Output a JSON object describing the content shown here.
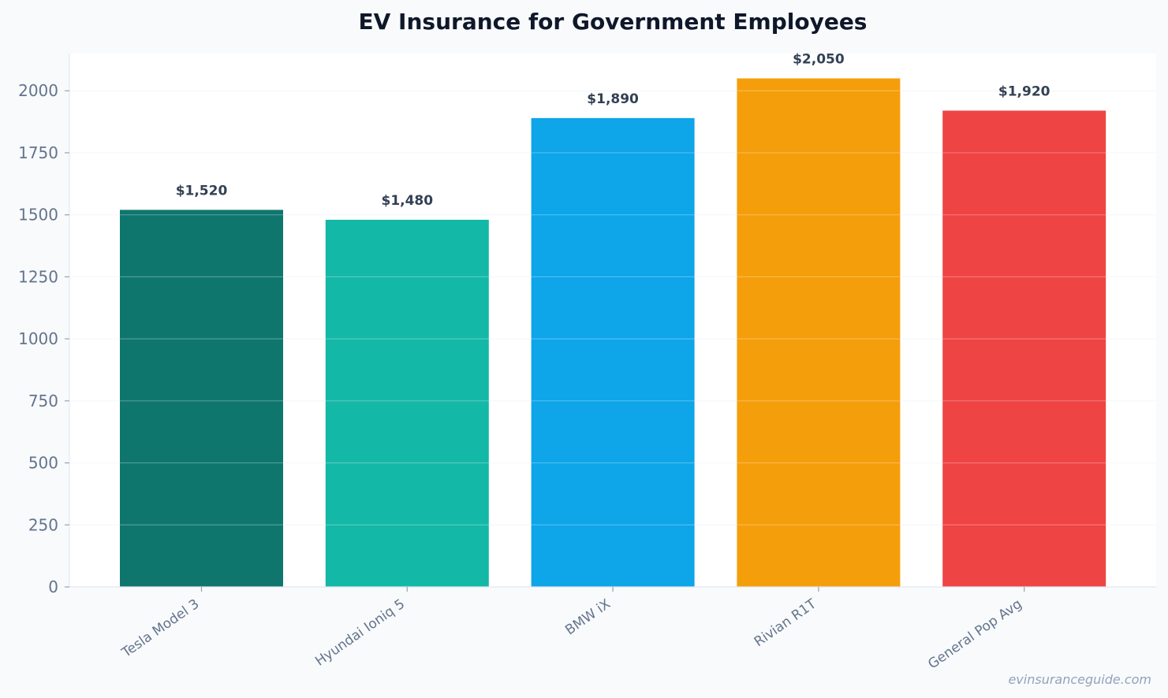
{
  "chart_data": {
    "type": "bar",
    "title": "EV Insurance for Government Employees",
    "categories": [
      "Tesla Model 3",
      "Hyundai Ioniq 5",
      "BMW iX",
      "Rivian R1T",
      "General Pop Avg"
    ],
    "values": [
      1520,
      1480,
      1890,
      2050,
      1920
    ],
    "value_labels": [
      "$1,520",
      "$1,480",
      "$1,890",
      "$2,050",
      "$1,920"
    ],
    "colors": [
      "#0f766e",
      "#14b8a6",
      "#0ea5e9",
      "#f59e0b",
      "#ef4444"
    ],
    "xlabel": "",
    "ylabel": "",
    "ylim": [
      0,
      2150
    ],
    "yticks": [
      0,
      250,
      500,
      750,
      1000,
      1250,
      1500,
      1750,
      2000
    ],
    "grid": true,
    "legend": "none"
  },
  "watermark": "evinsuranceguide.com"
}
